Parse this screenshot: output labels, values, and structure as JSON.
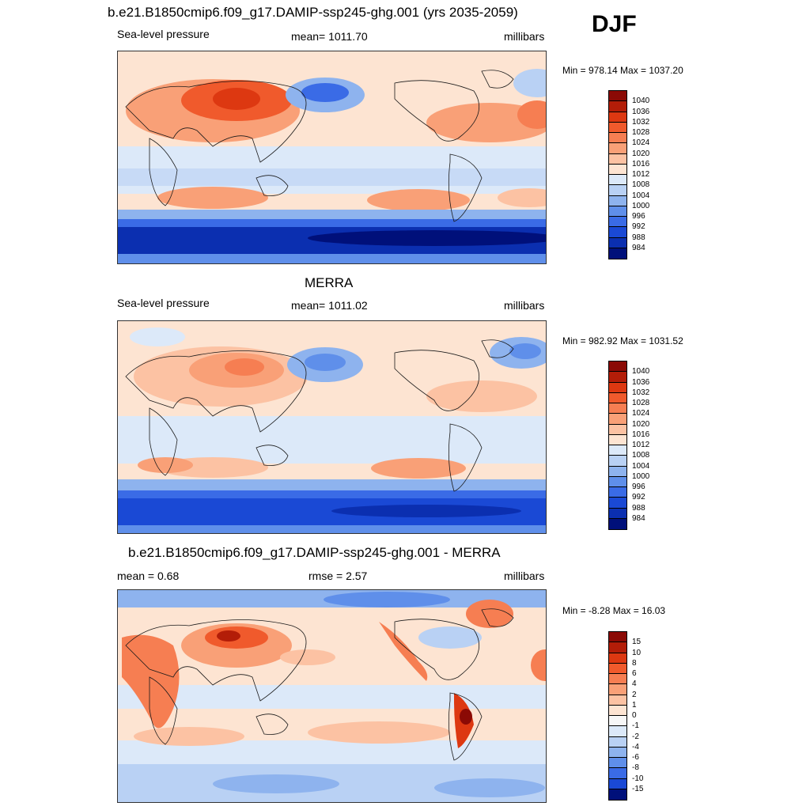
{
  "season": "DJF",
  "units": "millibars",
  "palette_pos": [
    "#f7e8dc",
    "#fcd2bb",
    "#fbb392",
    "#f98e66",
    "#f56a3e",
    "#ea4a1f",
    "#c8290d",
    "#8b0a05"
  ],
  "palette_neg": [
    "#d9e7f8",
    "#b6cff2",
    "#8fb4ec",
    "#6093ea",
    "#3b6fe7",
    "#1b4fd8",
    "#0832b6",
    "#00127f"
  ],
  "panels": [
    {
      "title": "b.e21.B1850cmip6.f09_g17.DAMIP-ssp245-ghg.001 (yrs 2035-2059)",
      "left_label": "Sea-level pressure",
      "center_label": "mean= 1011.70",
      "right_label": "millibars",
      "minmax": "Min = 978.14 Max = 1037.20",
      "colorbar_labels": [
        "1040",
        "1036",
        "1032",
        "1028",
        "1024",
        "1020",
        "1016",
        "1012",
        "1008",
        "1004",
        "1000",
        "996",
        "992",
        "988",
        "984"
      ],
      "colors": [
        "#8b0a05",
        "#b31d08",
        "#dd3811",
        "#f05a2c",
        "#f67e52",
        "#f9a077",
        "#fcc2a3",
        "#fde4d2",
        "#dce9f9",
        "#b9d1f4",
        "#8eb3ee",
        "#5f8fea",
        "#3a6be6",
        "#1a49d5",
        "#0b2fb0",
        "#00107a"
      ]
    },
    {
      "title": "MERRA",
      "left_label": "Sea-level pressure",
      "center_label": "mean= 1011.02",
      "right_label": "millibars",
      "minmax": "Min = 982.92 Max = 1031.52",
      "colorbar_labels": [
        "1040",
        "1036",
        "1032",
        "1028",
        "1024",
        "1020",
        "1016",
        "1012",
        "1008",
        "1004",
        "1000",
        "996",
        "992",
        "988",
        "984"
      ],
      "colors": [
        "#8b0a05",
        "#b31d08",
        "#dd3811",
        "#f05a2c",
        "#f67e52",
        "#f9a077",
        "#fcc2a3",
        "#fde4d2",
        "#dce9f9",
        "#b9d1f4",
        "#8eb3ee",
        "#5f8fea",
        "#3a6be6",
        "#1a49d5",
        "#0b2fb0",
        "#00107a"
      ]
    },
    {
      "title": "b.e21.B1850cmip6.f09_g17.DAMIP-ssp245-ghg.001 - MERRA",
      "left_label": "mean =   0.68",
      "center_label": "rmse =   2.57",
      "right_label": "millibars",
      "minmax": "Min =  -8.28 Max =  16.03",
      "colorbar_labels": [
        "15",
        "10",
        "8",
        "6",
        "4",
        "2",
        "1",
        "0",
        "-1",
        "-2",
        "-4",
        "-6",
        "-8",
        "-10",
        "-15"
      ],
      "colors": [
        "#8b0a05",
        "#b31d08",
        "#dd3811",
        "#f05a2c",
        "#f67e52",
        "#f9a077",
        "#fcc2a3",
        "#fde4d2",
        "#f7f7f7",
        "#dce9f9",
        "#b9d1f4",
        "#8eb3ee",
        "#5f8fea",
        "#3a6be6",
        "#1a49d5",
        "#00107a"
      ]
    }
  ]
}
